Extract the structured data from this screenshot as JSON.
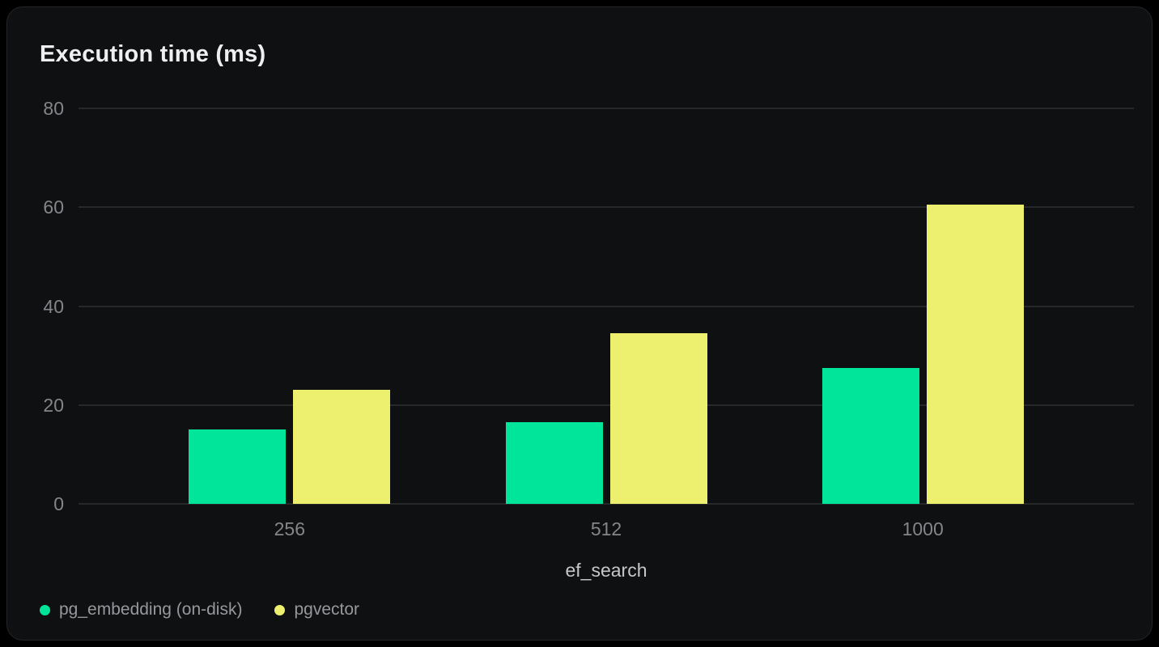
{
  "chart_data": {
    "type": "bar",
    "title": "Execution time (ms)",
    "xlabel": "ef_search",
    "ylabel": "",
    "categories": [
      "256",
      "512",
      "1000"
    ],
    "series": [
      {
        "name": "pg_embedding (on-disk)",
        "color": "#00e599",
        "values": [
          15,
          16.5,
          27.5
        ]
      },
      {
        "name": "pgvector",
        "color": "#edf06f",
        "values": [
          23,
          34.5,
          60.5
        ]
      }
    ],
    "ylim": [
      0,
      80
    ],
    "yticks": [
      0,
      20,
      40,
      60,
      80
    ],
    "grid": true,
    "legend_position": "bottom-left"
  },
  "theme": {
    "page_background": "#000000",
    "panel_background": "#0f1011",
    "panel_border": "#232529",
    "gridline_color": "rgba(255,255,255,0.10)",
    "title_color": "#edeff1",
    "tick_label_color": "#85868a",
    "axis_title_color": "#c6c7ca",
    "legend_text_color": "#97989c"
  }
}
